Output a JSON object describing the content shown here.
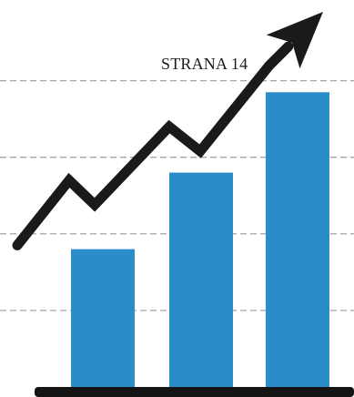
{
  "chart_data": {
    "type": "bar",
    "categories": [
      "",
      "",
      ""
    ],
    "values": [
      1.8,
      2.8,
      3.85
    ],
    "ylim": [
      0,
      4.9
    ],
    "grid": true,
    "annotation": "STRANA 14",
    "trend_line": [
      1.85,
      2.7,
      2.38,
      3.4,
      3.08,
      4.2,
      4.9
    ],
    "colors": {
      "bar": "#2a8cc8",
      "grid": "#9a9a9a",
      "line": "#1a1a1a",
      "axis": "#141414"
    }
  }
}
